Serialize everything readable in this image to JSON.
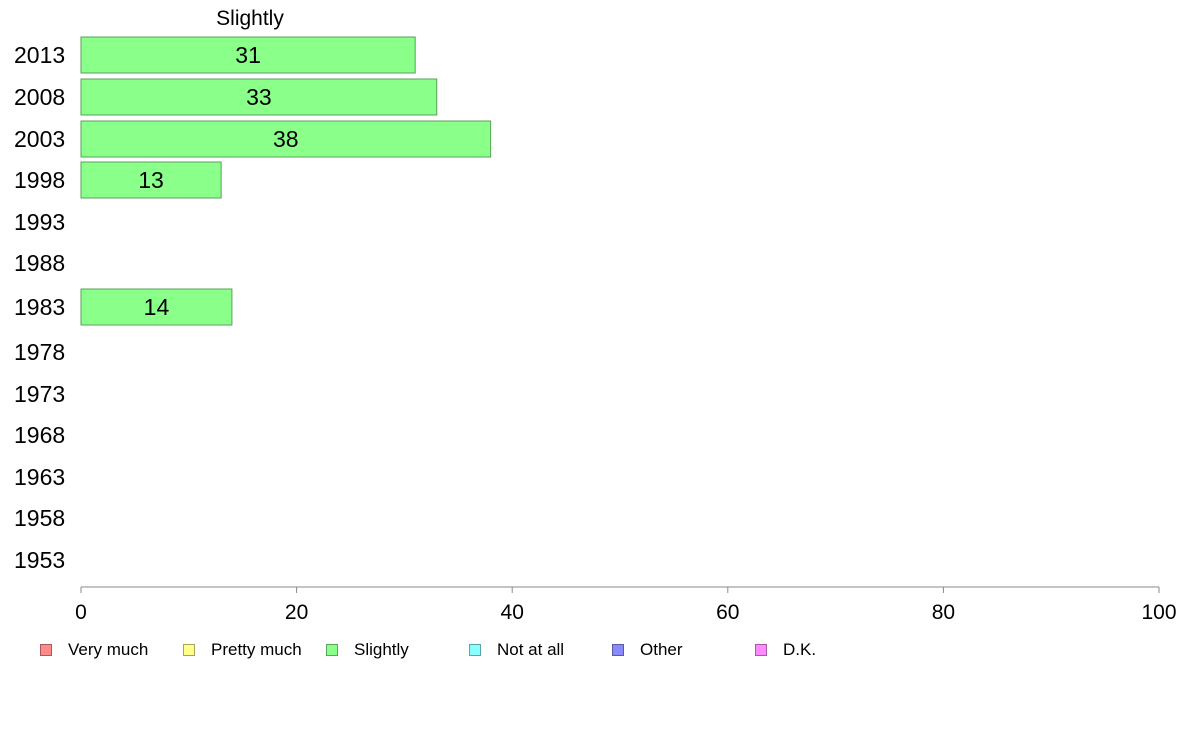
{
  "chart_data": {
    "type": "bar",
    "orientation": "horizontal",
    "stacked": true,
    "title": "Slightly",
    "categories": [
      "2013",
      "2008",
      "2003",
      "1998",
      "1993",
      "1988",
      "1983",
      "1978",
      "1973",
      "1968",
      "1963",
      "1958",
      "1953"
    ],
    "series": [
      {
        "name": "Very much",
        "color": "#ff8a8a",
        "values": [
          null,
          null,
          null,
          null,
          null,
          null,
          null,
          null,
          null,
          null,
          null,
          null,
          null
        ]
      },
      {
        "name": "Pretty much",
        "color": "#ffff8a",
        "values": [
          null,
          null,
          null,
          null,
          null,
          null,
          null,
          null,
          null,
          null,
          null,
          null,
          null
        ]
      },
      {
        "name": "Slightly",
        "color": "#8aff8a",
        "values": [
          31,
          33,
          38,
          13,
          null,
          null,
          14,
          null,
          null,
          null,
          null,
          null,
          null
        ]
      },
      {
        "name": "Not at all",
        "color": "#8affff",
        "values": [
          null,
          null,
          null,
          null,
          null,
          null,
          null,
          null,
          null,
          null,
          null,
          null,
          null
        ]
      },
      {
        "name": "Other",
        "color": "#8a8aff",
        "values": [
          null,
          null,
          null,
          null,
          null,
          null,
          null,
          null,
          null,
          null,
          null,
          null,
          null
        ]
      },
      {
        "name": "D.K.",
        "color": "#ff8aff",
        "values": [
          null,
          null,
          null,
          null,
          null,
          null,
          null,
          null,
          null,
          null,
          null,
          null,
          null
        ]
      }
    ],
    "xlim": [
      0,
      100
    ],
    "xticks": [
      "0",
      "20",
      "40",
      "60",
      "80",
      "100"
    ],
    "grid": false,
    "legend_position": "bottom"
  }
}
